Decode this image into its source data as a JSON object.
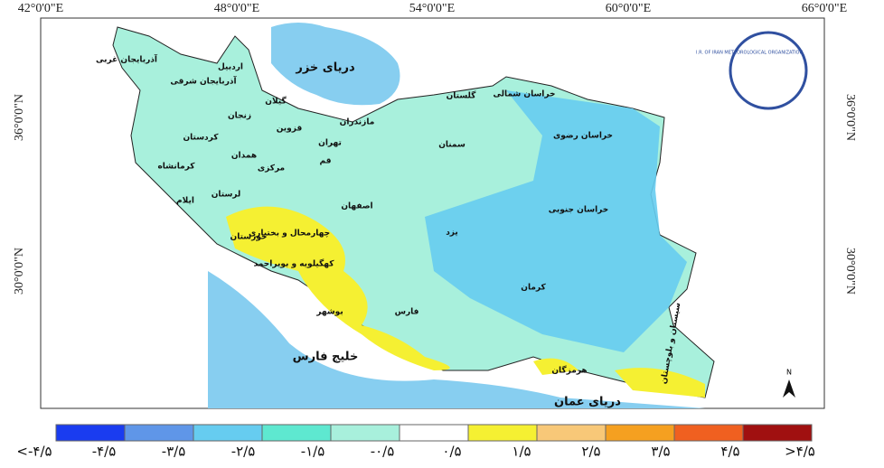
{
  "map": {
    "lon_labels": [
      "42°0'0\"E",
      "48°0'0\"E",
      "54°0'0\"E",
      "60°0'0\"E",
      "66°0'0\"E"
    ],
    "lat_labels": [
      "36°0'0\"N",
      "30°0'0\"N"
    ],
    "labels": [
      "آذربایجان غربی",
      "آذربایجان شرقی",
      "اردبیل",
      "گیلان",
      "زنجان",
      "کردستان",
      "قزوین",
      "مازندران",
      "گلستان",
      "خراسان شمالی",
      "خراسان رضوی",
      "سمنان",
      "تهران",
      "قم",
      "همدان",
      "مرکزی",
      "کرمانشاه",
      "لرستان",
      "ایلام",
      "اصفهان",
      "یزد",
      "خراسان جنوبی",
      "خوزستان",
      "چهارمحال و بختیاری",
      "کهگیلویه و بویراحمد",
      "فارس",
      "بوشهر",
      "کرمان",
      "هرمزگان",
      "سیستان و بلوچستان"
    ],
    "seas": [
      "دریای خزر",
      "خلیج فارس",
      "دریای عمان"
    ],
    "north": "N",
    "logo": "I.R. OF IRAN METEOROLOGICAL ORGANIZATION"
  },
  "legend": {
    "colors": [
      "#1a3cf0",
      "#5f96e8",
      "#66ccf0",
      "#5ee8d0",
      "#a8f0dc",
      "#ffffff",
      "#f5f032",
      "#f8c878",
      "#f5a020",
      "#f06020",
      "#a01010"
    ],
    "labels": [
      "<-۴/۵",
      "-۴/۵",
      "-۳/۵",
      "-۲/۵",
      "-۱/۵",
      "-۰/۵",
      "۰/۵",
      "۱/۵",
      "۲/۵",
      "۳/۵",
      "۴/۵",
      ">۴/۵"
    ]
  }
}
